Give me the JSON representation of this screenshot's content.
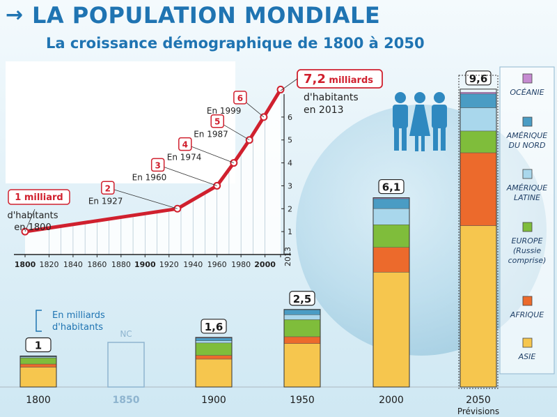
{
  "header": {
    "arrow": "→",
    "title": "LA POPULATION MONDIALE",
    "subtitle": "La croissance démographique de 1800 à 2050"
  },
  "colors": {
    "accent": "#1f74b2",
    "line": "#d0202e",
    "oceanie": "#c58bd1",
    "amerique_nord": "#4a9cc4",
    "amerique_latine": "#a9d7ec",
    "europe": "#7fbd3b",
    "afrique": "#ec6a2c",
    "asie": "#f6c64e"
  },
  "chart_data": [
    {
      "type": "line",
      "title": "",
      "xlabel": "",
      "ylabel": "",
      "x_ticks": [
        "1800",
        "1820",
        "1840",
        "1860",
        "1880",
        "1900",
        "1920",
        "1940",
        "1960",
        "1980",
        "2000",
        "2013"
      ],
      "y_ticks": [
        "1",
        "2",
        "3",
        "4",
        "5",
        "6"
      ],
      "xlim": [
        1800,
        2013
      ],
      "ylim": [
        0,
        7
      ],
      "points": [
        {
          "x": 1800,
          "y": 1,
          "badge": "1 milliard",
          "label": "",
          "label2": ""
        },
        {
          "x": 1927,
          "y": 2,
          "badge": "2",
          "label": "En 1927",
          "label2": ""
        },
        {
          "x": 1960,
          "y": 3,
          "badge": "3",
          "label": "En 1960",
          "label2": ""
        },
        {
          "x": 1974,
          "y": 4,
          "badge": "4",
          "label": "En 1974",
          "label2": ""
        },
        {
          "x": 1987,
          "y": 5,
          "badge": "5",
          "label": "En 1987",
          "label2": ""
        },
        {
          "x": 1999,
          "y": 6,
          "badge": "6",
          "label": "En 1999",
          "label2": ""
        },
        {
          "x": 2013,
          "y": 7.2,
          "badge": "",
          "label": "",
          "label2": ""
        }
      ],
      "start_note": {
        "line1": "d'habitants",
        "line2": "en 1800"
      },
      "end_note": {
        "value": "7,2",
        "unit": " milliards",
        "line1": "d'habitants",
        "line2": "en 2013"
      }
    },
    {
      "type": "bar",
      "stacked": true,
      "unit_note": {
        "line1": "En milliards",
        "line2": "d'habitants"
      },
      "categories": [
        "1800",
        "1850",
        "1900",
        "1950",
        "2000",
        "2050"
      ],
      "sublabels": [
        "",
        "",
        "",
        "",
        "",
        "Prévisions"
      ],
      "totals": [
        "1",
        "NC",
        "1,6",
        "2,5",
        "6,1",
        "9,6"
      ],
      "total_values": [
        1,
        null,
        1.6,
        2.5,
        6.1,
        9.6
      ],
      "series": [
        {
          "name": "ASIE",
          "color_key": "asie",
          "values": [
            0.64,
            null,
            0.9,
            1.4,
            3.7,
            5.2
          ]
        },
        {
          "name": "AFRIQUE",
          "color_key": "afrique",
          "values": [
            0.1,
            null,
            0.12,
            0.22,
            0.8,
            2.35
          ]
        },
        {
          "name": "EUROPE (Russie comprise)",
          "color_key": "europe",
          "values": [
            0.2,
            null,
            0.4,
            0.55,
            0.73,
            0.7
          ]
        },
        {
          "name": "AMÉRIQUE LATINE",
          "color_key": "amerique_latine",
          "values": [
            0.03,
            null,
            0.07,
            0.16,
            0.52,
            0.75
          ]
        },
        {
          "name": "AMÉRIQUE DU NORD",
          "color_key": "amerique_nord",
          "values": [
            0.02,
            null,
            0.09,
            0.16,
            0.32,
            0.45
          ]
        },
        {
          "name": "OCÉANIE",
          "color_key": "oceanie",
          "values": [
            0.01,
            null,
            0.02,
            0.01,
            0.03,
            0.05
          ]
        }
      ]
    }
  ],
  "legend": [
    {
      "line1": "OCÉANIE",
      "line2": "",
      "line3": "",
      "color_key": "oceanie"
    },
    {
      "line1": "AMÉRIQUE",
      "line2": "DU NORD",
      "line3": "",
      "color_key": "amerique_nord"
    },
    {
      "line1": "AMÉRIQUE",
      "line2": "LATINE",
      "line3": "",
      "color_key": "amerique_latine"
    },
    {
      "line1": "EUROPE",
      "line2": "(Russie",
      "line3": "comprise)",
      "color_key": "europe"
    },
    {
      "line1": "AFRIQUE",
      "line2": "",
      "line3": "",
      "color_key": "afrique"
    },
    {
      "line1": "ASIE",
      "line2": "",
      "line3": "",
      "color_key": "asie"
    }
  ]
}
